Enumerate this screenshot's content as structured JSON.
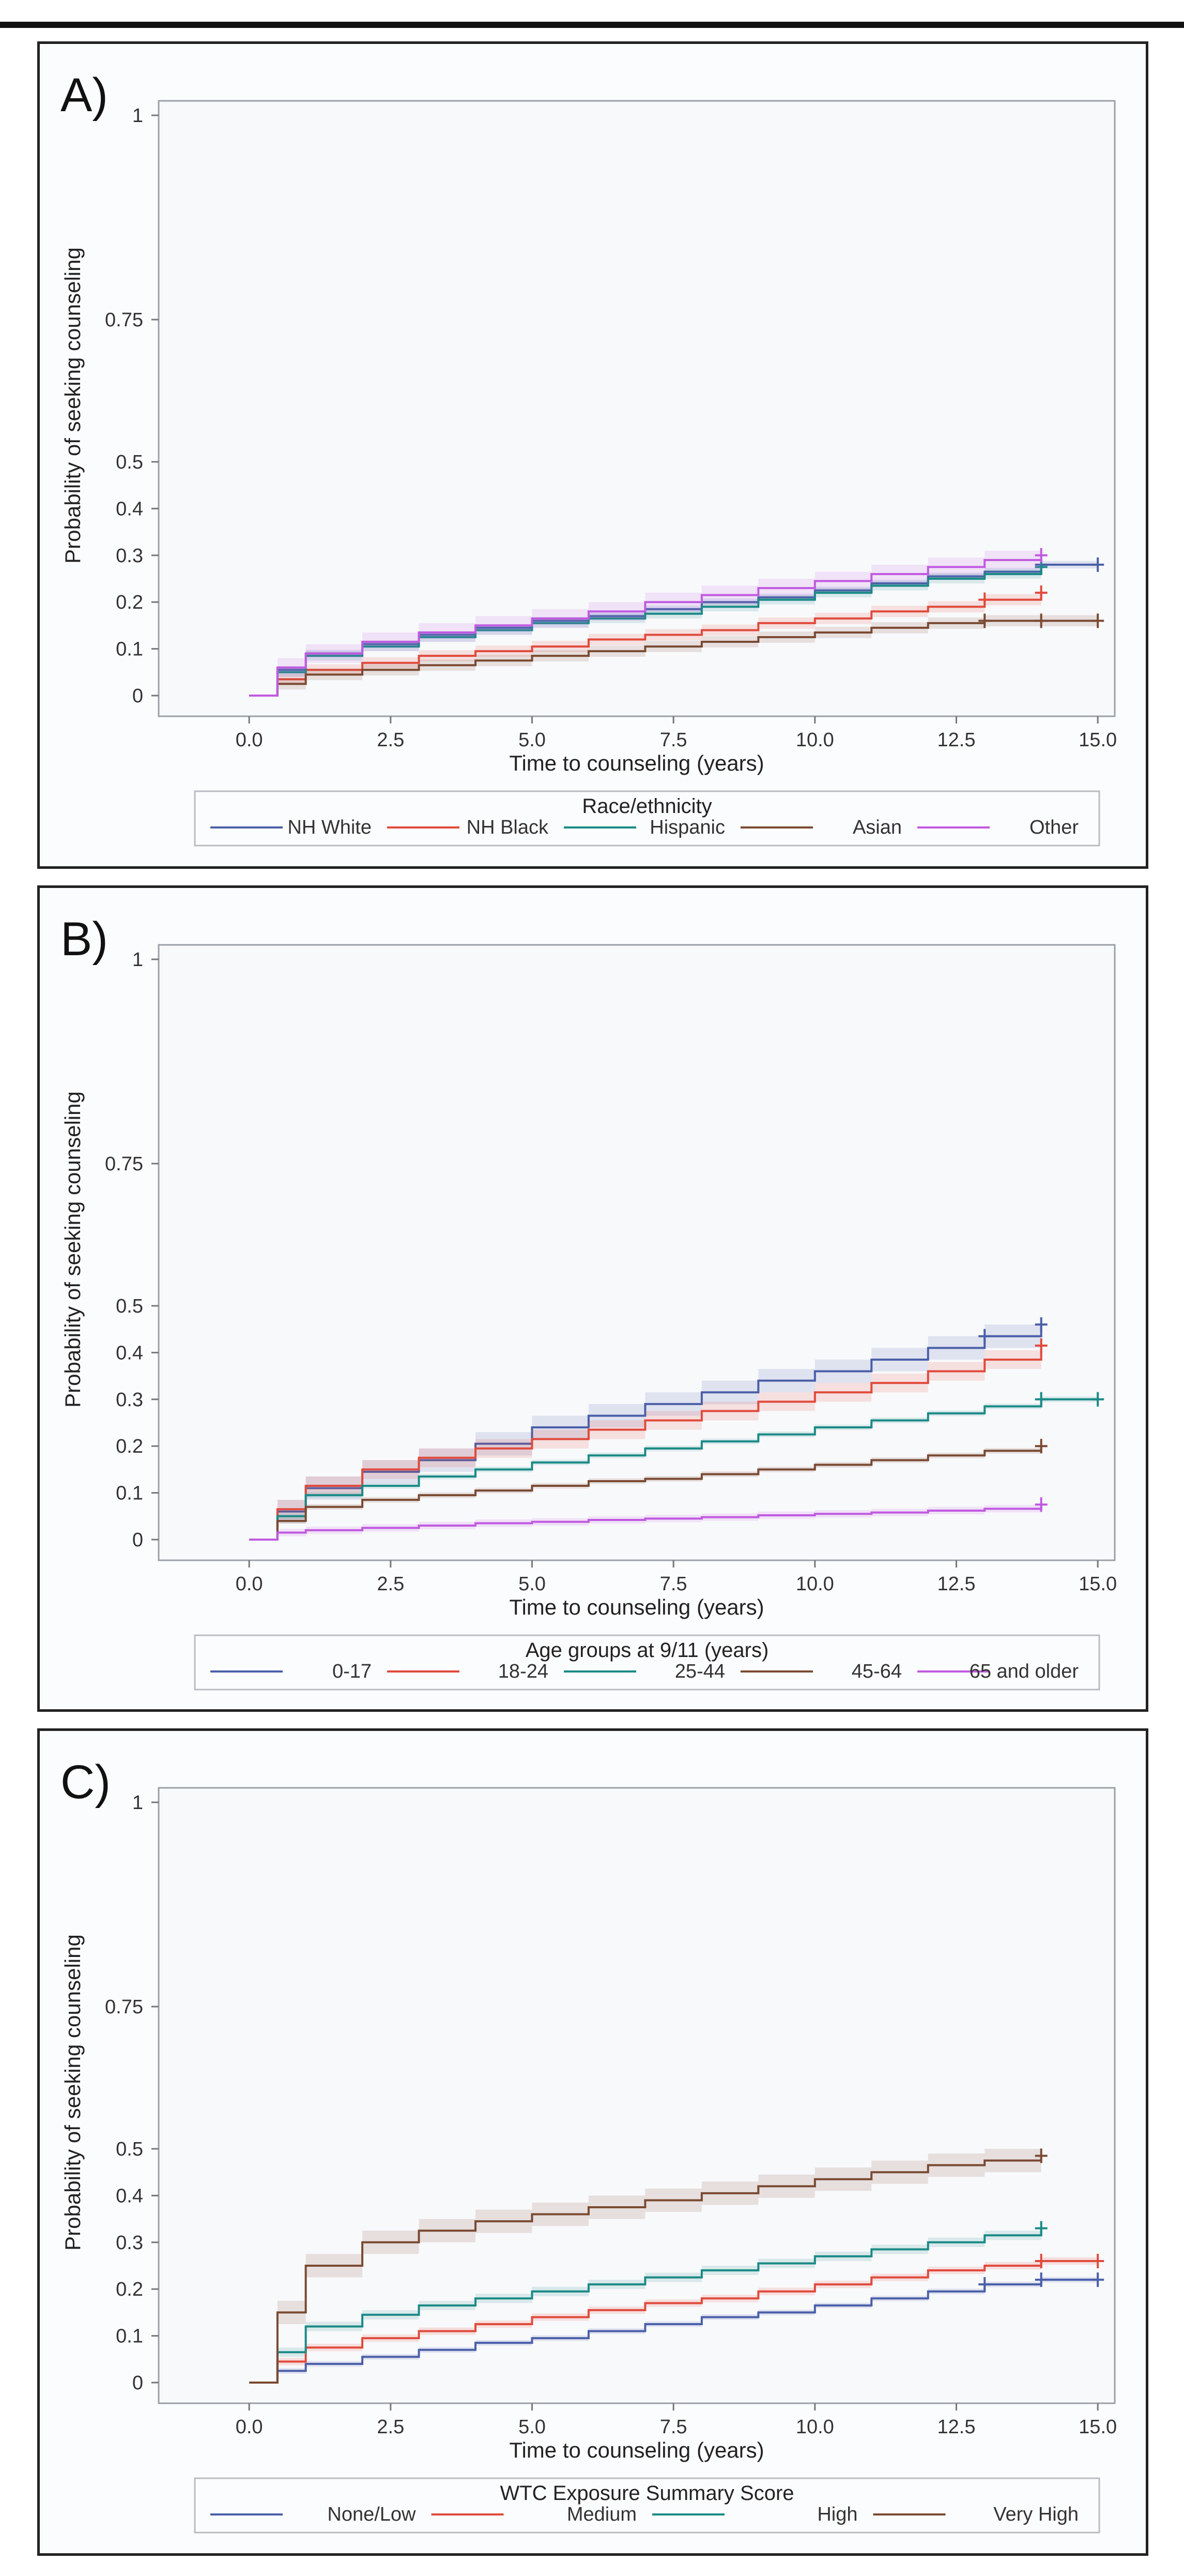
{
  "chart_data": [
    {
      "type": "line",
      "panel_label": "A)",
      "xlabel": "Time to counseling (years)",
      "ylabel": "Probability of seeking counseling",
      "xlim": [
        -1.6,
        15.3
      ],
      "x_ticks": [
        "0.0",
        "2.5",
        "5.0",
        "7.5",
        "10.0",
        "12.5",
        "15.0"
      ],
      "y_ticks": [
        "0",
        "0.1",
        "0.2",
        "0.3",
        "0.4",
        "0.5",
        "0.75",
        "1"
      ],
      "legend_title": "Race/ethnicity",
      "series": [
        {
          "name": "NH White",
          "color": "#4a5fa8",
          "end": 15.0,
          "x": [
            0,
            0.5,
            1,
            2,
            3,
            4,
            5,
            6,
            7,
            8,
            9,
            10,
            11,
            12,
            13,
            14,
            15
          ],
          "values": [
            0,
            0.055,
            0.09,
            0.11,
            0.13,
            0.145,
            0.16,
            0.17,
            0.185,
            0.2,
            0.21,
            0.225,
            0.24,
            0.255,
            0.265,
            0.28,
            0.28
          ],
          "band": 0.008,
          "censor": [
            14.0,
            15.0
          ]
        },
        {
          "name": "NH Black",
          "color": "#e04a3c",
          "end": 14.0,
          "x": [
            0,
            0.5,
            1,
            2,
            3,
            4,
            5,
            6,
            7,
            8,
            9,
            10,
            11,
            12,
            13,
            14
          ],
          "values": [
            0,
            0.035,
            0.055,
            0.07,
            0.085,
            0.095,
            0.105,
            0.12,
            0.13,
            0.14,
            0.155,
            0.165,
            0.18,
            0.19,
            0.205,
            0.22
          ],
          "band": 0.012,
          "censor": [
            13.0,
            14.0
          ]
        },
        {
          "name": "Hispanic",
          "color": "#1a8a86",
          "end": 14.0,
          "x": [
            0,
            0.5,
            1,
            2,
            3,
            4,
            5,
            6,
            7,
            8,
            9,
            10,
            11,
            12,
            13,
            14
          ],
          "values": [
            0,
            0.05,
            0.085,
            0.105,
            0.125,
            0.14,
            0.155,
            0.165,
            0.175,
            0.19,
            0.205,
            0.22,
            0.235,
            0.25,
            0.26,
            0.275
          ],
          "band": 0.01,
          "censor": [
            14.0
          ]
        },
        {
          "name": "Asian",
          "color": "#7a4a32",
          "end": 15.0,
          "x": [
            0,
            0.5,
            1,
            2,
            3,
            4,
            5,
            6,
            7,
            8,
            9,
            10,
            11,
            12,
            13,
            14,
            15
          ],
          "values": [
            0,
            0.025,
            0.045,
            0.055,
            0.065,
            0.075,
            0.085,
            0.095,
            0.105,
            0.115,
            0.125,
            0.135,
            0.145,
            0.155,
            0.16,
            0.16,
            0.16
          ],
          "band": 0.012,
          "censor": [
            13.0,
            14.0,
            15.0
          ]
        },
        {
          "name": "Other",
          "color": "#c05ae0",
          "end": 14.0,
          "x": [
            0,
            0.5,
            1,
            2,
            3,
            4,
            5,
            6,
            7,
            8,
            9,
            10,
            11,
            12,
            13,
            14
          ],
          "values": [
            0,
            0.06,
            0.09,
            0.115,
            0.135,
            0.15,
            0.165,
            0.18,
            0.2,
            0.215,
            0.23,
            0.245,
            0.26,
            0.275,
            0.29,
            0.3
          ],
          "band": 0.02,
          "censor": [
            14.0
          ]
        }
      ]
    },
    {
      "type": "line",
      "panel_label": "B)",
      "xlabel": "Time to counseling (years)",
      "ylabel": "Probability of seeking counseling",
      "xlim": [
        -1.6,
        15.3
      ],
      "x_ticks": [
        "0.0",
        "2.5",
        "5.0",
        "7.5",
        "10.0",
        "12.5",
        "15.0"
      ],
      "y_ticks": [
        "0",
        "0.1",
        "0.2",
        "0.3",
        "0.4",
        "0.5",
        "0.75",
        "1"
      ],
      "legend_title": "Age groups at 9/11 (years)",
      "series": [
        {
          "name": "0-17",
          "color": "#4a5fa8",
          "end": 14.0,
          "x": [
            0,
            0.5,
            1,
            2,
            3,
            4,
            5,
            6,
            7,
            8,
            9,
            10,
            11,
            12,
            13,
            14
          ],
          "values": [
            0,
            0.06,
            0.11,
            0.145,
            0.17,
            0.205,
            0.24,
            0.265,
            0.29,
            0.315,
            0.34,
            0.36,
            0.385,
            0.41,
            0.435,
            0.46
          ],
          "band": 0.025,
          "censor": [
            13.0,
            14.0
          ]
        },
        {
          "name": "18-24",
          "color": "#e04a3c",
          "end": 14.0,
          "x": [
            0,
            0.5,
            1,
            2,
            3,
            4,
            5,
            6,
            7,
            8,
            9,
            10,
            11,
            12,
            13,
            14
          ],
          "values": [
            0,
            0.065,
            0.115,
            0.15,
            0.175,
            0.195,
            0.215,
            0.235,
            0.255,
            0.275,
            0.295,
            0.315,
            0.335,
            0.36,
            0.385,
            0.415
          ],
          "band": 0.02,
          "censor": [
            14.0
          ]
        },
        {
          "name": "25-44",
          "color": "#1a8a86",
          "end": 15.0,
          "x": [
            0,
            0.5,
            1,
            2,
            3,
            4,
            5,
            6,
            7,
            8,
            9,
            10,
            11,
            12,
            13,
            14,
            15
          ],
          "values": [
            0,
            0.05,
            0.095,
            0.115,
            0.135,
            0.15,
            0.165,
            0.18,
            0.195,
            0.21,
            0.225,
            0.24,
            0.255,
            0.27,
            0.285,
            0.3,
            0.3
          ],
          "band": 0.006,
          "censor": [
            14.0,
            15.0
          ]
        },
        {
          "name": "45-64",
          "color": "#7a4a32",
          "end": 14.0,
          "x": [
            0,
            0.5,
            1,
            2,
            3,
            4,
            5,
            6,
            7,
            8,
            9,
            10,
            11,
            12,
            13,
            14
          ],
          "values": [
            0,
            0.04,
            0.07,
            0.085,
            0.095,
            0.105,
            0.115,
            0.125,
            0.13,
            0.14,
            0.15,
            0.16,
            0.17,
            0.18,
            0.19,
            0.2
          ],
          "band": 0.006,
          "censor": [
            14.0
          ]
        },
        {
          "name": "65 and older",
          "color": "#c05ae0",
          "end": 14.0,
          "x": [
            0,
            0.5,
            1,
            2,
            3,
            4,
            5,
            6,
            7,
            8,
            9,
            10,
            11,
            12,
            13,
            14
          ],
          "values": [
            0,
            0.015,
            0.02,
            0.025,
            0.03,
            0.035,
            0.038,
            0.042,
            0.045,
            0.048,
            0.052,
            0.055,
            0.058,
            0.062,
            0.066,
            0.075
          ],
          "band": 0.008,
          "censor": [
            14.0
          ]
        }
      ]
    },
    {
      "type": "line",
      "panel_label": "C)",
      "xlabel": "Time to counseling (years)",
      "ylabel": "Probability of seeking counseling",
      "xlim": [
        -1.6,
        15.3
      ],
      "x_ticks": [
        "0.0",
        "2.5",
        "5.0",
        "7.5",
        "10.0",
        "12.5",
        "15.0"
      ],
      "y_ticks": [
        "0",
        "0.1",
        "0.2",
        "0.3",
        "0.4",
        "0.5",
        "0.75",
        "1"
      ],
      "legend_title": "WTC Exposure Summary Score",
      "series": [
        {
          "name": "None/Low",
          "color": "#4a5fa8",
          "end": 15.0,
          "x": [
            0,
            0.5,
            1,
            2,
            3,
            4,
            5,
            6,
            7,
            8,
            9,
            10,
            11,
            12,
            13,
            14,
            15
          ],
          "values": [
            0,
            0.025,
            0.04,
            0.055,
            0.07,
            0.085,
            0.095,
            0.11,
            0.125,
            0.14,
            0.15,
            0.165,
            0.18,
            0.195,
            0.21,
            0.22,
            0.22
          ],
          "band": 0.006,
          "censor": [
            13.0,
            14.0,
            15.0
          ]
        },
        {
          "name": "Medium",
          "color": "#e04a3c",
          "end": 15.0,
          "x": [
            0,
            0.5,
            1,
            2,
            3,
            4,
            5,
            6,
            7,
            8,
            9,
            10,
            11,
            12,
            13,
            14,
            15
          ],
          "values": [
            0,
            0.045,
            0.075,
            0.095,
            0.11,
            0.125,
            0.14,
            0.155,
            0.17,
            0.18,
            0.195,
            0.21,
            0.225,
            0.24,
            0.25,
            0.26,
            0.26
          ],
          "band": 0.008,
          "censor": [
            14.0,
            15.0
          ]
        },
        {
          "name": "High",
          "color": "#1a8a86",
          "end": 14.0,
          "x": [
            0,
            0.5,
            1,
            2,
            3,
            4,
            5,
            6,
            7,
            8,
            9,
            10,
            11,
            12,
            13,
            14
          ],
          "values": [
            0,
            0.065,
            0.12,
            0.145,
            0.165,
            0.18,
            0.195,
            0.21,
            0.225,
            0.24,
            0.255,
            0.27,
            0.285,
            0.3,
            0.315,
            0.33
          ],
          "band": 0.01,
          "censor": [
            14.0
          ]
        },
        {
          "name": "Very High",
          "color": "#7a4a32",
          "end": 14.0,
          "x": [
            0,
            0.5,
            1,
            2,
            3,
            4,
            5,
            6,
            7,
            8,
            9,
            10,
            11,
            12,
            13,
            14
          ],
          "values": [
            0,
            0.15,
            0.25,
            0.3,
            0.325,
            0.345,
            0.36,
            0.375,
            0.39,
            0.405,
            0.42,
            0.435,
            0.45,
            0.465,
            0.475,
            0.485
          ],
          "band": 0.025,
          "censor": [
            14.0
          ]
        }
      ]
    }
  ]
}
